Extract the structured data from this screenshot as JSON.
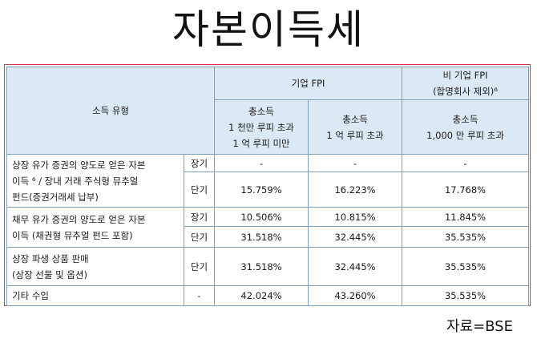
{
  "title": "자본이득세",
  "source": "자료=BSE",
  "header": {
    "income_type": "소득 유형",
    "fpi_group": "기업 FPI",
    "nonfpi_group_line1": "비 기업 FPI",
    "nonfpi_group_line2": "(합명회사 제외)⁶",
    "col1": [
      "총소득",
      "1 천만 루피 초과",
      "1 억 루피 미만"
    ],
    "col2": [
      "총소득",
      "1 억 루피 초과"
    ],
    "col3": [
      "총소득",
      "1,000 만 루피 초과"
    ]
  },
  "rows": [
    {
      "label": [
        "상장 유가 증권의 양도로 얻은 자본",
        "이득 ⁶ / 장내 거래 주식형 뮤추얼",
        "펀드(증권거래세 납부)"
      ],
      "terms": [
        {
          "term": "장기",
          "values": [
            "-",
            "-",
            "-"
          ]
        },
        {
          "term": "단기",
          "values": [
            "15.759%",
            "16.223%",
            "17.768%"
          ]
        }
      ]
    },
    {
      "label": [
        "채무 유가 증권의 양도로 얻은 자본",
        "이득 (채권형 뮤추얼 펀드 포함)"
      ],
      "terms": [
        {
          "term": "장기",
          "values": [
            "10.506%",
            "10.815%",
            "11.845%"
          ]
        },
        {
          "term": "단기",
          "values": [
            "31.518%",
            "32.445%",
            "35.535%"
          ]
        }
      ]
    },
    {
      "label": [
        "상장 파생 상품 판매",
        "(상장 선물 및 옵션)"
      ],
      "terms": [
        {
          "term": "단기",
          "values": [
            "31.518%",
            "32.445%",
            "35.535%"
          ]
        }
      ]
    },
    {
      "label": [
        "기타 수입"
      ],
      "terms": [
        {
          "term": "-",
          "values": [
            "42.024%",
            "43.260%",
            "35.535%"
          ]
        }
      ]
    }
  ]
}
